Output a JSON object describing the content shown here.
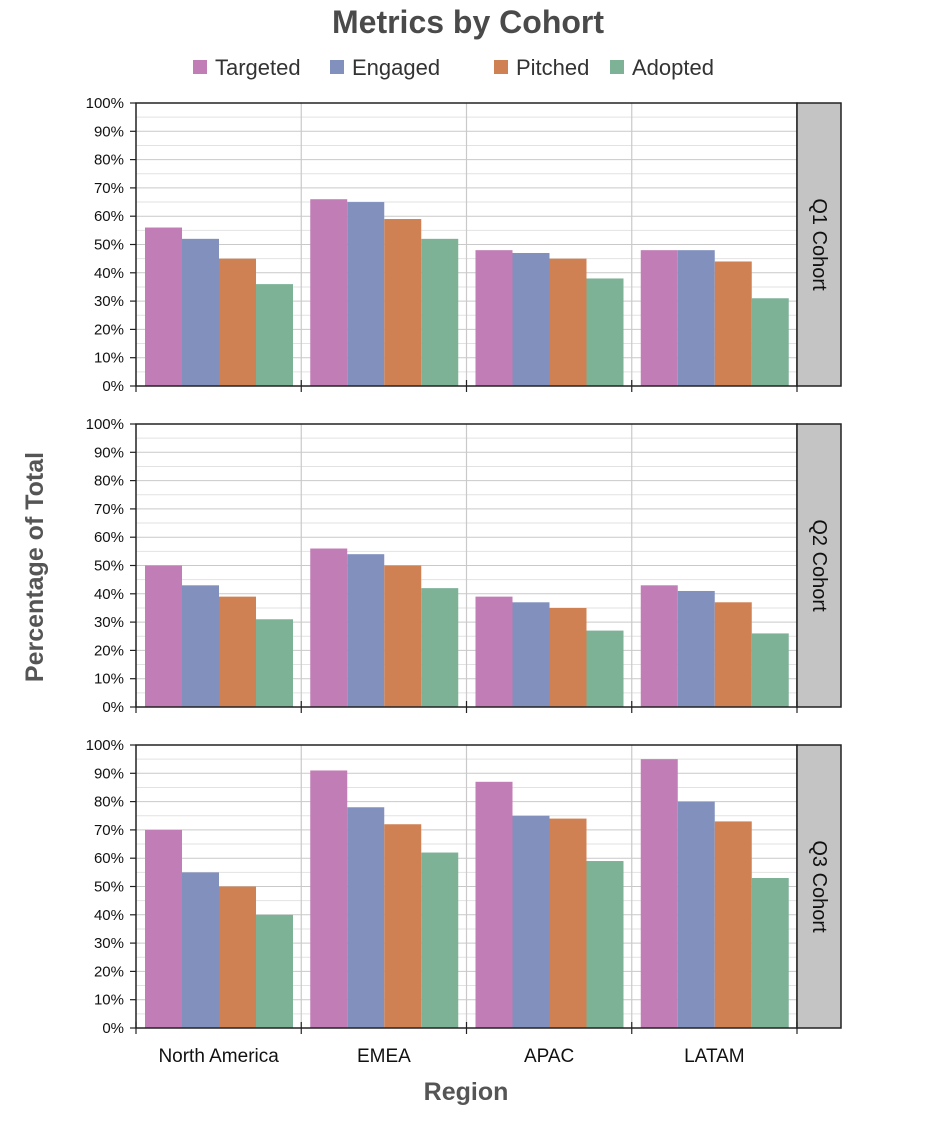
{
  "chart_data": {
    "type": "bar",
    "title": "Metrics by Cohort",
    "xlabel": "Region",
    "ylabel": "Percentage of Total",
    "categories": [
      "North America",
      "EMEA",
      "APAC",
      "LATAM"
    ],
    "y_ticks": [
      "0%",
      "10%",
      "20%",
      "30%",
      "40%",
      "50%",
      "60%",
      "70%",
      "80%",
      "90%",
      "100%"
    ],
    "ylim": [
      0,
      100
    ],
    "grid": true,
    "legend_position": "top",
    "series_names": [
      "Targeted",
      "Engaged",
      "Pitched",
      "Adopted"
    ],
    "colors": [
      "#c17db5",
      "#8290be",
      "#d08153",
      "#7db297"
    ],
    "panels": [
      {
        "label": "Q1 Cohort",
        "series": [
          {
            "name": "Targeted",
            "values": [
              56,
              66,
              48,
              48
            ]
          },
          {
            "name": "Engaged",
            "values": [
              52,
              65,
              47,
              48
            ]
          },
          {
            "name": "Pitched",
            "values": [
              45,
              59,
              45,
              44
            ]
          },
          {
            "name": "Adopted",
            "values": [
              36,
              52,
              38,
              31
            ]
          }
        ]
      },
      {
        "label": "Q2 Cohort",
        "series": [
          {
            "name": "Targeted",
            "values": [
              50,
              56,
              39,
              43
            ]
          },
          {
            "name": "Engaged",
            "values": [
              43,
              54,
              37,
              41
            ]
          },
          {
            "name": "Pitched",
            "values": [
              39,
              50,
              35,
              37
            ]
          },
          {
            "name": "Adopted",
            "values": [
              31,
              42,
              27,
              26
            ]
          }
        ]
      },
      {
        "label": "Q3 Cohort",
        "series": [
          {
            "name": "Targeted",
            "values": [
              70,
              91,
              87,
              95
            ]
          },
          {
            "name": "Engaged",
            "values": [
              55,
              78,
              75,
              80
            ]
          },
          {
            "name": "Pitched",
            "values": [
              50,
              72,
              74,
              73
            ]
          },
          {
            "name": "Adopted",
            "values": [
              40,
              62,
              59,
              53
            ]
          }
        ]
      }
    ]
  }
}
